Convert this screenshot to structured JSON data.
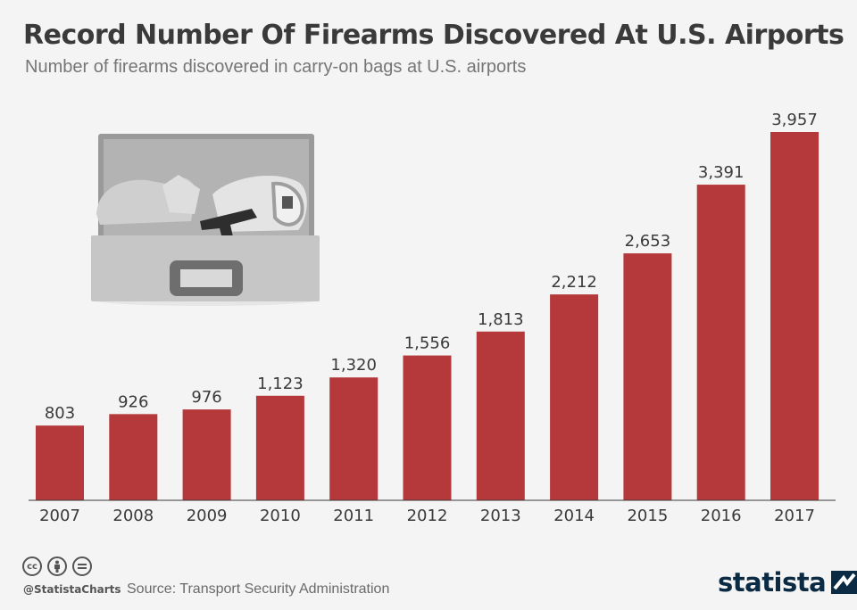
{
  "title": "Record Number Of Firearms Discovered At U.S. Airports",
  "subtitle": "Number of firearms discovered in carry-on bags at U.S. airports",
  "footer": {
    "handle": "@StatistaCharts",
    "source": "Source: Transport Security Administration",
    "brand": "statista"
  },
  "colors": {
    "bar": "#b5383a",
    "background": "#f4f4f4",
    "axis": "#3a3a3a"
  },
  "icons": [
    "cc-icon",
    "by-icon",
    "nd-icon",
    "statista-logo-icon",
    "suitcase-with-gun-illustration"
  ],
  "chart_data": {
    "type": "bar",
    "categories": [
      "2007",
      "2008",
      "2009",
      "2010",
      "2011",
      "2012",
      "2013",
      "2014",
      "2015",
      "2016",
      "2017"
    ],
    "values": [
      803,
      926,
      976,
      1123,
      1320,
      1556,
      1813,
      2212,
      2653,
      3391,
      3957
    ],
    "value_labels": [
      "803",
      "926",
      "976",
      "1,123",
      "1,320",
      "1,556",
      "1,813",
      "2,212",
      "2,653",
      "3,391",
      "3,957"
    ],
    "title": "Record Number Of Firearms Discovered At U.S. Airports",
    "subtitle": "Number of firearms discovered in carry-on bags at U.S. airports",
    "xlabel": "",
    "ylabel": "",
    "ylim": [
      0,
      4000
    ],
    "grid": false,
    "legend": "none"
  }
}
